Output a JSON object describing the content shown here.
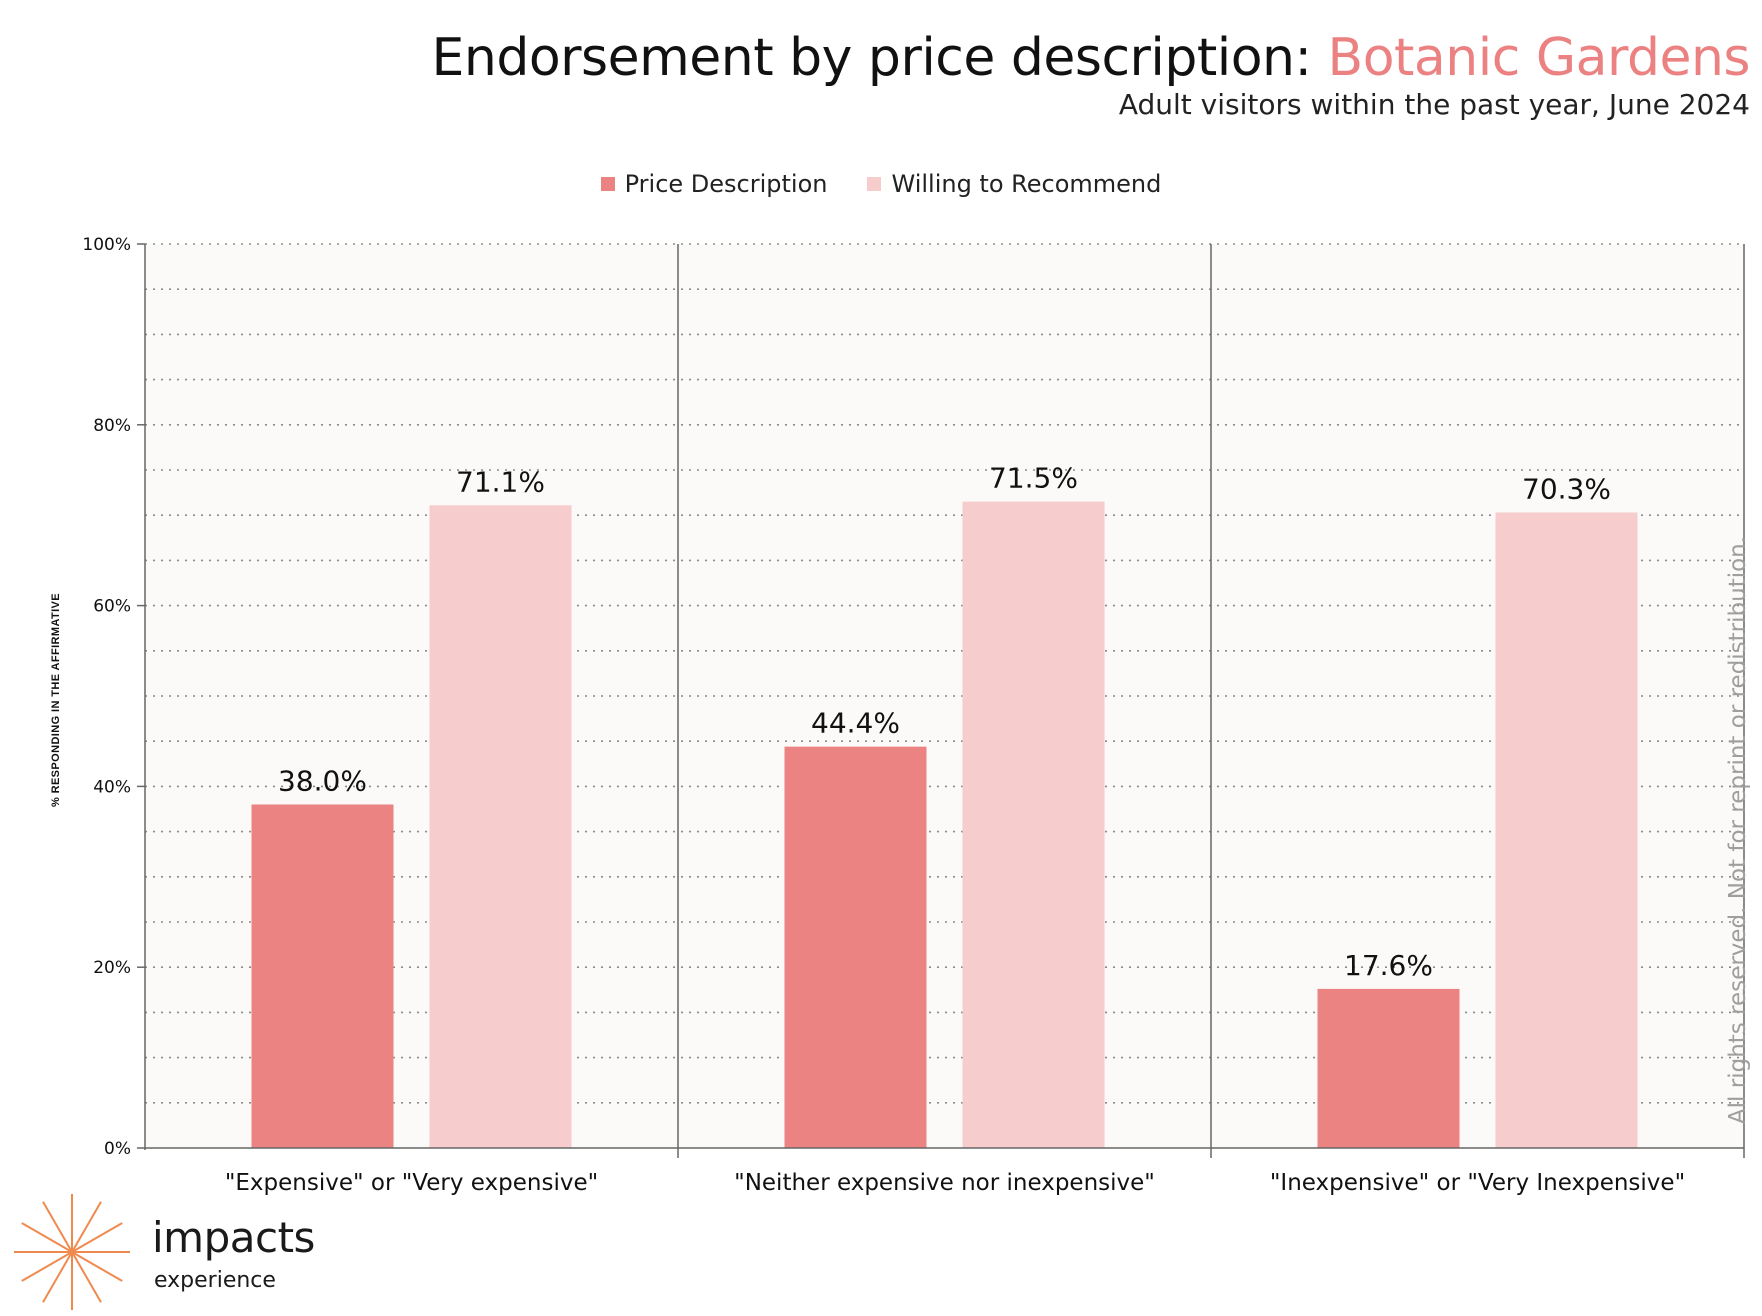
{
  "header": {
    "title_main": "Endorsement by price description: ",
    "title_accent": "Botanic Gardens",
    "subtitle": "Adult visitors within the past year, June 2024"
  },
  "legend": [
    {
      "label": "Price Description",
      "color": "#ec8383"
    },
    {
      "label": "Willing to Recommend",
      "color": "#f6cccc"
    }
  ],
  "chart_data": {
    "type": "bar",
    "categories": [
      "\"Expensive\" or \"Very expensive\"",
      "\"Neither expensive nor inexpensive\"",
      "\"Inexpensive\" or \"Very Inexpensive\""
    ],
    "series": [
      {
        "name": "Price Description",
        "values": [
          38.0,
          44.4,
          17.6
        ],
        "labels": [
          "38.0%",
          "44.4%",
          "17.6%"
        ],
        "color": "#ec8383"
      },
      {
        "name": "Willing to Recommend",
        "values": [
          71.1,
          71.5,
          70.3
        ],
        "labels": [
          "71.1%",
          "71.5%",
          "70.3%"
        ],
        "color": "#f6cccc"
      }
    ],
    "ylim": [
      0,
      100
    ],
    "y_ticks": [
      0,
      20,
      40,
      60,
      80,
      100
    ],
    "y_tick_labels": [
      "0%",
      "20%",
      "40%",
      "60%",
      "80%",
      "100%"
    ],
    "ylabel": "% RESPONDING IN THE AFFIRMATIVE",
    "xlabel": "",
    "grid": true,
    "legend_position": "top-center"
  },
  "copyright": "All rights reserved. Not for reprint or redistribution.",
  "logo": {
    "name": "impacts",
    "sub": "experience"
  },
  "watermark": {
    "name": "impacts",
    "sub": "experience"
  }
}
